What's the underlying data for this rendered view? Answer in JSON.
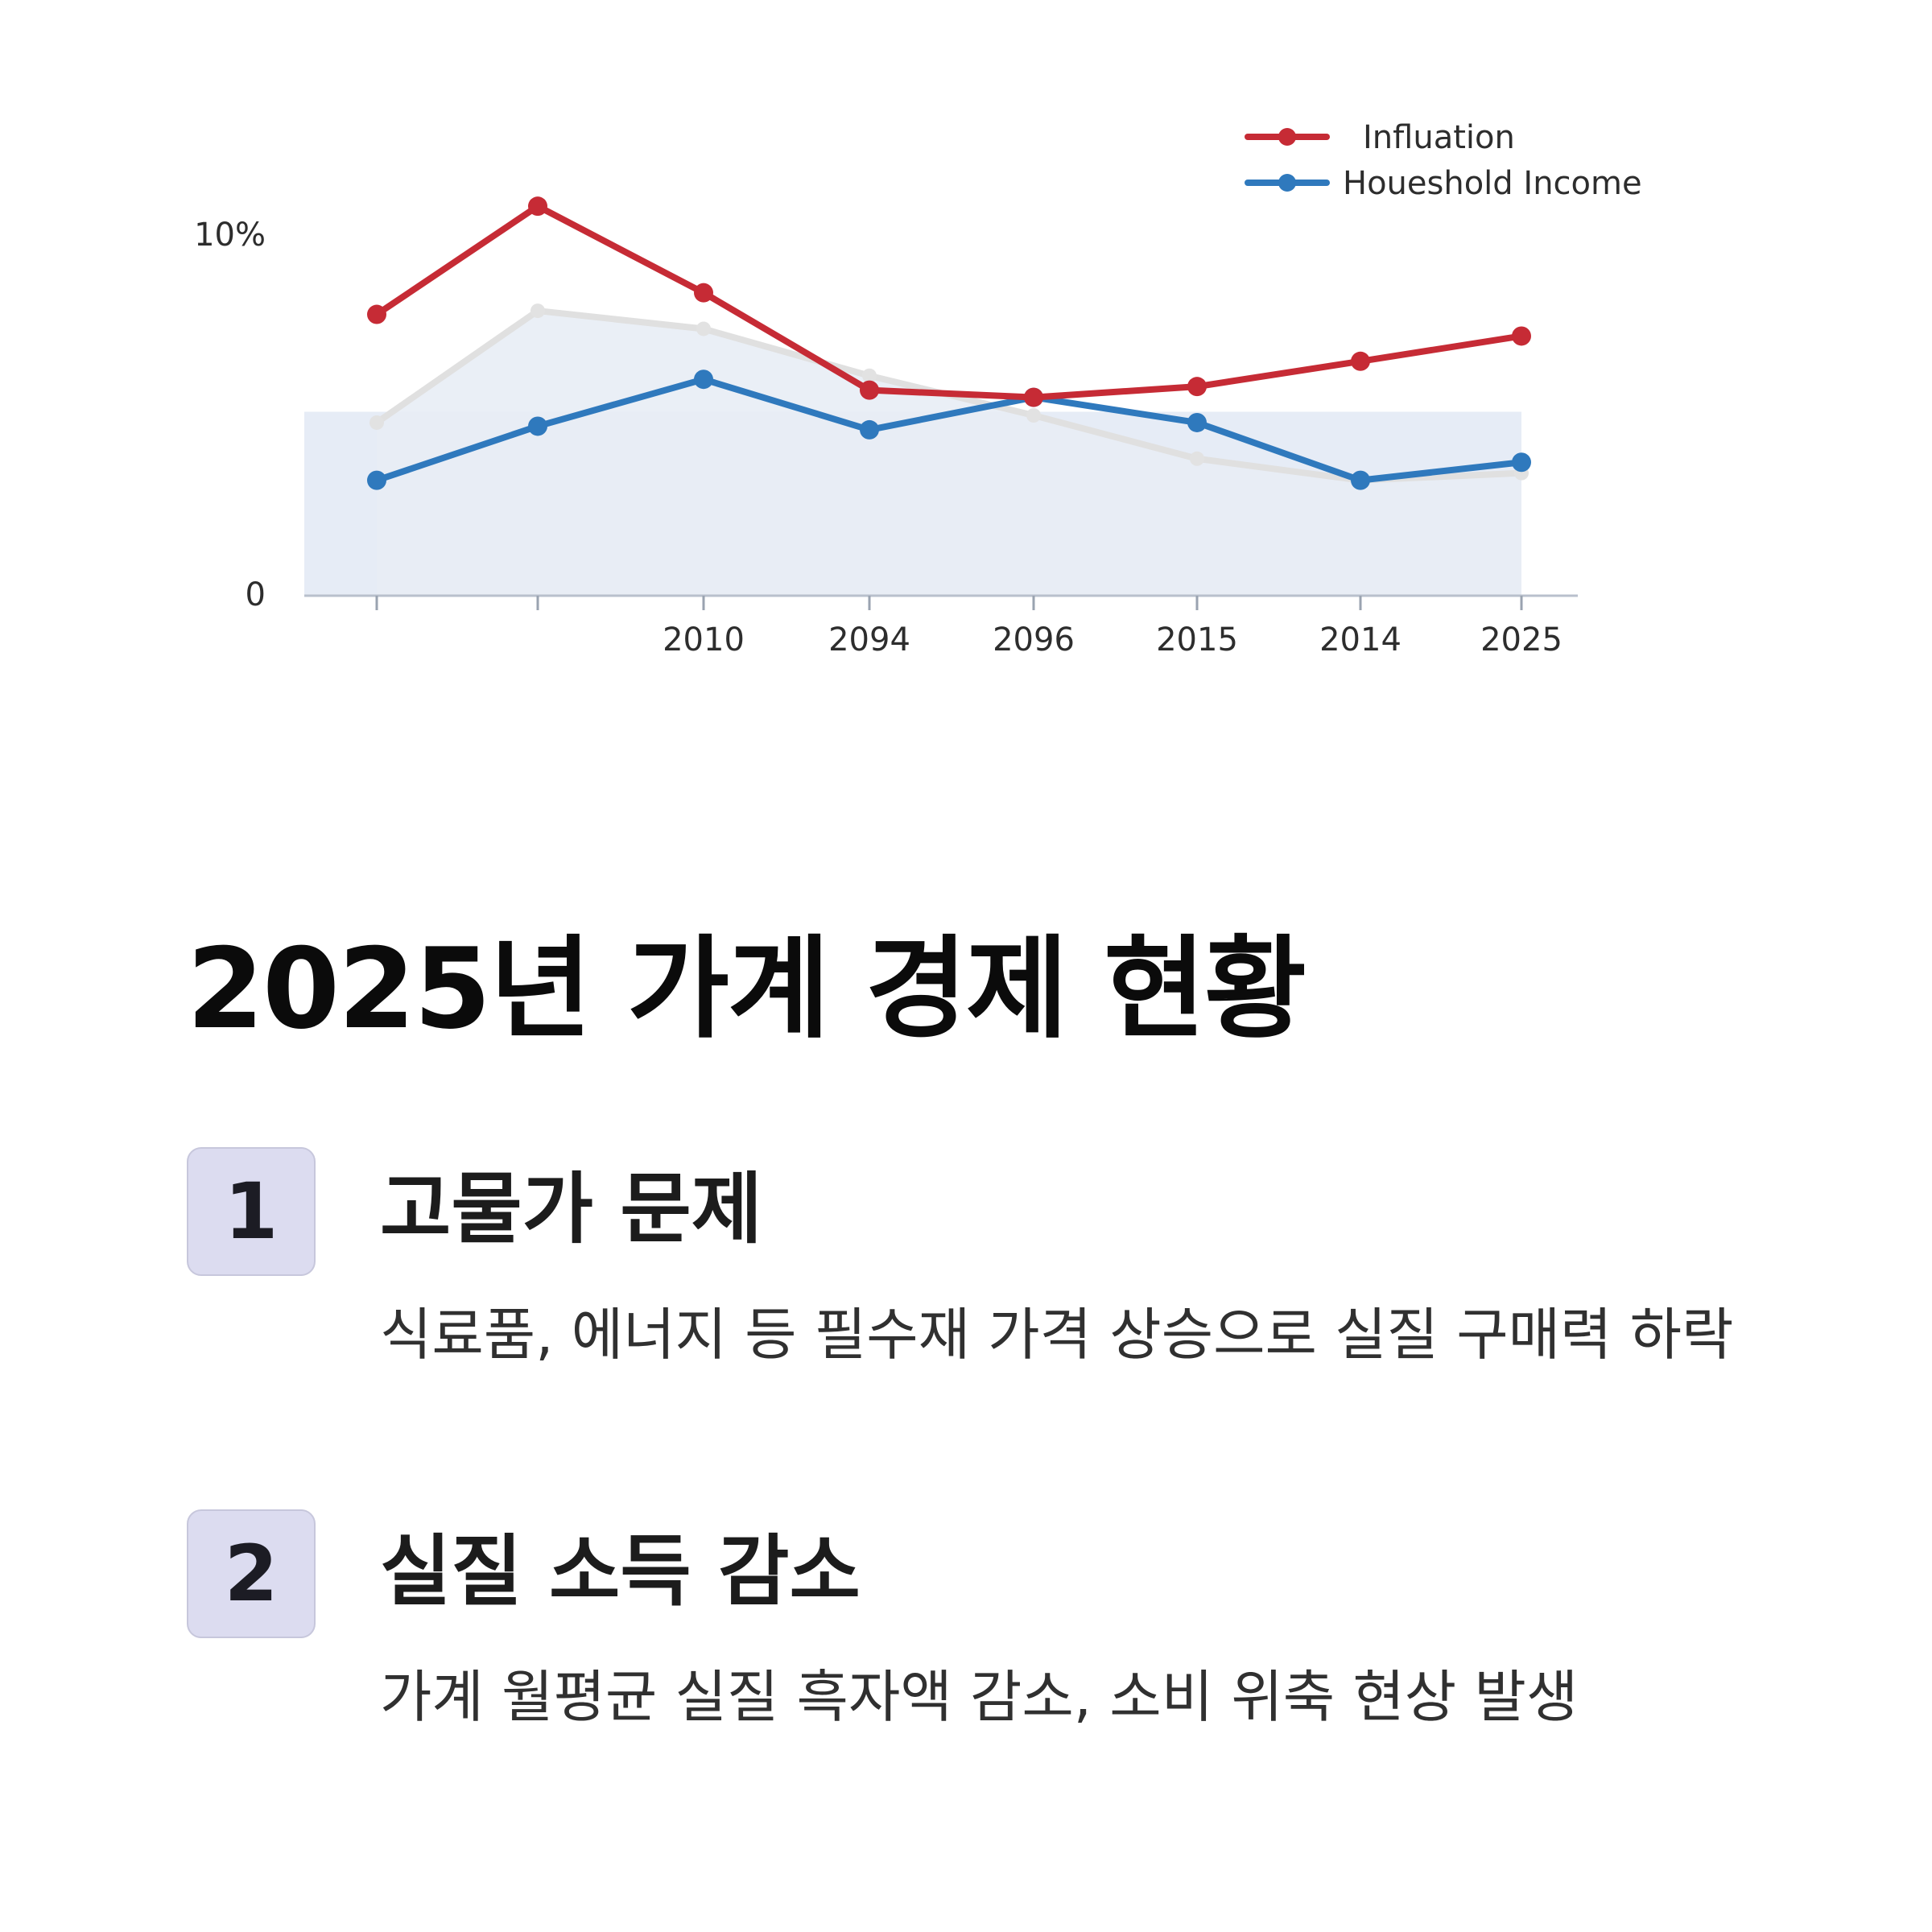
{
  "chart_data": {
    "type": "line",
    "title": "",
    "xlabel": "",
    "ylabel": "",
    "y_tick_labels": [
      "10%",
      "0"
    ],
    "categories": [
      "",
      "",
      "2010",
      "2094",
      "2096",
      "2015",
      "2014",
      "2025"
    ],
    "ylim": [
      0,
      10
    ],
    "grid": false,
    "legend_position": "top-right",
    "series": [
      {
        "name": "Influation",
        "color": "#c62b35",
        "values": [
          7.8,
          10.8,
          8.4,
          5.7,
          5.5,
          5.8,
          6.5,
          7.2
        ]
      },
      {
        "name": "Houeshold Income",
        "color": "#2f79bd",
        "values": [
          3.2,
          4.7,
          6.0,
          4.6,
          5.5,
          4.8,
          3.2,
          3.7
        ]
      }
    ],
    "background_area": {
      "color": "#e6ecf6",
      "values": [
        4.8,
        7.9,
        7.4,
        6.1,
        5.0,
        3.8,
        3.2,
        3.4
      ]
    }
  },
  "heading": "2025년 가계 경제 현황",
  "items": [
    {
      "number": "1",
      "title": "고물가 문제",
      "description": "식료품, 에너지 등 필수재 가격 상승으로 실질 구매력 하락"
    },
    {
      "number": "2",
      "title": "실질 소득 감소",
      "description": "가계 월평균 실질 흑자액 감소, 소비 위축 현상 발생"
    }
  ]
}
